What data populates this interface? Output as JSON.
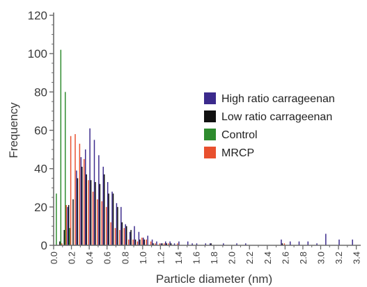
{
  "chart_data": {
    "type": "bar",
    "title": "",
    "xlabel": "Particle diameter (nm)",
    "ylabel": "Frequency",
    "ylim": [
      0,
      120
    ],
    "yticks": [
      0,
      20,
      40,
      60,
      80,
      100,
      120
    ],
    "x_domain": [
      0.0,
      3.45
    ],
    "x_ticks": [
      "0.0",
      "0.2",
      "0.4",
      "0.6",
      "0.8",
      "1.0",
      "1.2",
      "1.4",
      "1.6",
      "1.8",
      "2.0",
      "2.2",
      "2.4",
      "2.6",
      "2.8",
      "3.0",
      "3.2",
      "3.4"
    ],
    "bin_width": 0.05,
    "legend_position": "right",
    "categories": [
      0.025,
      0.075,
      0.125,
      0.175,
      0.225,
      0.275,
      0.325,
      0.375,
      0.425,
      0.475,
      0.525,
      0.575,
      0.625,
      0.675,
      0.725,
      0.775,
      0.825,
      0.875,
      0.925,
      0.975,
      1.025,
      1.075,
      1.125,
      1.175,
      1.225,
      1.275,
      1.325,
      1.375,
      1.425,
      1.475,
      1.525,
      1.575,
      1.625,
      1.675,
      1.725,
      1.775,
      1.825,
      1.875,
      1.925,
      1.975,
      2.025,
      2.075,
      2.175,
      2.575,
      2.675,
      2.775,
      2.875,
      2.975,
      3.075,
      3.225,
      3.375
    ],
    "series": [
      {
        "name": "High ratio carrageenan",
        "color": "#3b2a8c",
        "values": [
          0,
          0,
          0,
          20,
          0,
          39,
          46,
          50,
          61,
          55,
          47,
          41,
          33,
          28,
          22,
          20,
          11,
          7,
          10,
          7,
          4,
          5,
          3,
          2,
          1,
          2,
          2,
          1,
          2,
          0,
          2,
          1,
          1,
          0,
          1,
          1,
          0,
          0,
          1,
          0,
          0,
          1,
          1,
          3,
          2,
          2,
          2,
          1,
          6,
          3,
          3
        ]
      },
      {
        "name": "Low ratio carrageenan",
        "color": "#111111",
        "values": [
          0,
          2,
          8,
          21,
          24,
          35,
          41,
          37,
          34,
          33,
          32,
          37,
          27,
          27,
          20,
          12,
          10,
          8,
          3,
          3,
          3,
          0,
          1,
          0,
          1,
          1,
          1,
          0,
          0,
          0,
          0,
          0,
          0,
          0,
          0,
          1,
          0,
          0,
          0,
          0,
          0,
          0,
          0,
          1,
          0,
          0,
          0,
          0,
          0,
          0,
          0
        ]
      },
      {
        "name": "Control",
        "color": "#2e8b2e",
        "values": [
          27,
          102,
          80,
          9,
          0,
          0,
          0,
          0,
          0,
          0,
          0,
          0,
          0,
          0,
          0,
          0,
          0,
          0,
          0,
          0,
          0,
          0,
          0,
          0,
          0,
          0,
          0,
          0,
          0,
          0,
          0,
          0,
          0,
          0,
          0,
          0,
          0,
          0,
          0,
          0,
          0,
          0,
          0,
          0,
          0,
          0,
          0,
          0,
          0,
          0,
          0
        ]
      },
      {
        "name": "MRCP",
        "color": "#e8502e",
        "values": [
          0,
          1,
          21,
          57,
          58,
          53,
          45,
          34,
          28,
          24,
          23,
          20,
          12,
          9,
          8,
          9,
          3,
          3,
          2,
          4,
          3,
          2,
          1,
          1,
          1,
          1,
          0,
          1,
          0,
          0,
          0,
          0,
          0,
          0,
          0,
          0,
          0,
          0,
          0,
          0,
          0,
          0,
          0,
          1,
          0,
          0,
          0,
          0,
          0,
          0,
          0
        ]
      }
    ]
  }
}
